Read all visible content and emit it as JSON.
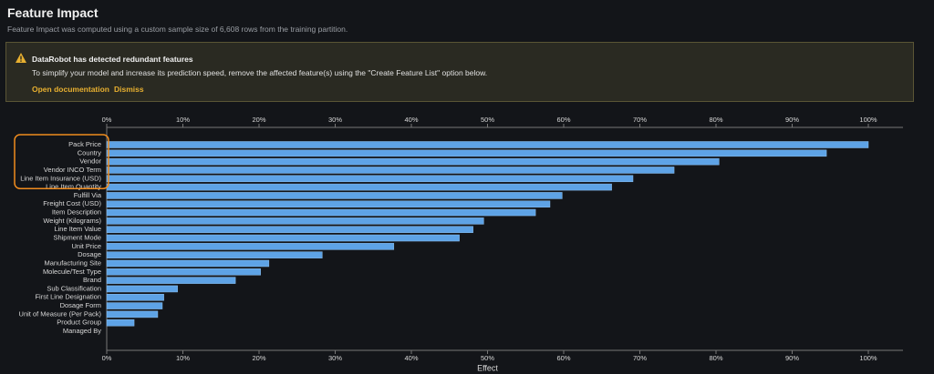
{
  "header": {
    "title": "Feature Impact",
    "subtitle": "Feature Impact was computed using a custom sample size of 6,608 rows from the training partition."
  },
  "alert": {
    "title": "DataRobot has detected redundant features",
    "message": "To simplify your model and increase its prediction speed, remove the affected feature(s) using the \"Create Feature List\" option below.",
    "links": [
      "Open documentation",
      "Dismiss"
    ]
  },
  "chart_data": {
    "type": "bar",
    "orientation": "horizontal",
    "xlabel": "Effect",
    "color": "#5ea3e6",
    "categories": [
      "Pack Price",
      "Country",
      "Vendor",
      "Vendor INCO Term",
      "Line Item Insurance (USD)",
      "Line Item Quantity",
      "Fulfill Via",
      "Freight Cost (USD)",
      "Item Description",
      "Weight (Kilograms)",
      "Line Item Value",
      "Shipment Mode",
      "Unit Price",
      "Dosage",
      "Manufacturing Site",
      "Molecule/Test Type",
      "Brand",
      "Sub Classification",
      "First Line Designation",
      "Dosage Form",
      "Unit of Measure (Per Pack)",
      "Product Group",
      "Managed By"
    ],
    "values": [
      100,
      94.5,
      80.4,
      74.5,
      69.1,
      66.3,
      59.8,
      58.2,
      56.3,
      49.5,
      48.1,
      46.3,
      37.7,
      28.3,
      21.3,
      20.2,
      16.9,
      9.3,
      7.5,
      7.3,
      6.7,
      3.6,
      0
    ],
    "xlim": [
      0,
      100
    ],
    "xticks": [
      {
        "value": 0,
        "label": "0%"
      },
      {
        "value": 10,
        "label": "10%"
      },
      {
        "value": 20,
        "label": "20%"
      },
      {
        "value": 30,
        "label": "30%"
      },
      {
        "value": 40,
        "label": "40%"
      },
      {
        "value": 50,
        "label": "50%"
      },
      {
        "value": 60,
        "label": "60%"
      },
      {
        "value": 70,
        "label": "70%"
      },
      {
        "value": 80,
        "label": "80%"
      },
      {
        "value": 90,
        "label": "90%"
      },
      {
        "value": 100,
        "label": "100%"
      }
    ]
  }
}
